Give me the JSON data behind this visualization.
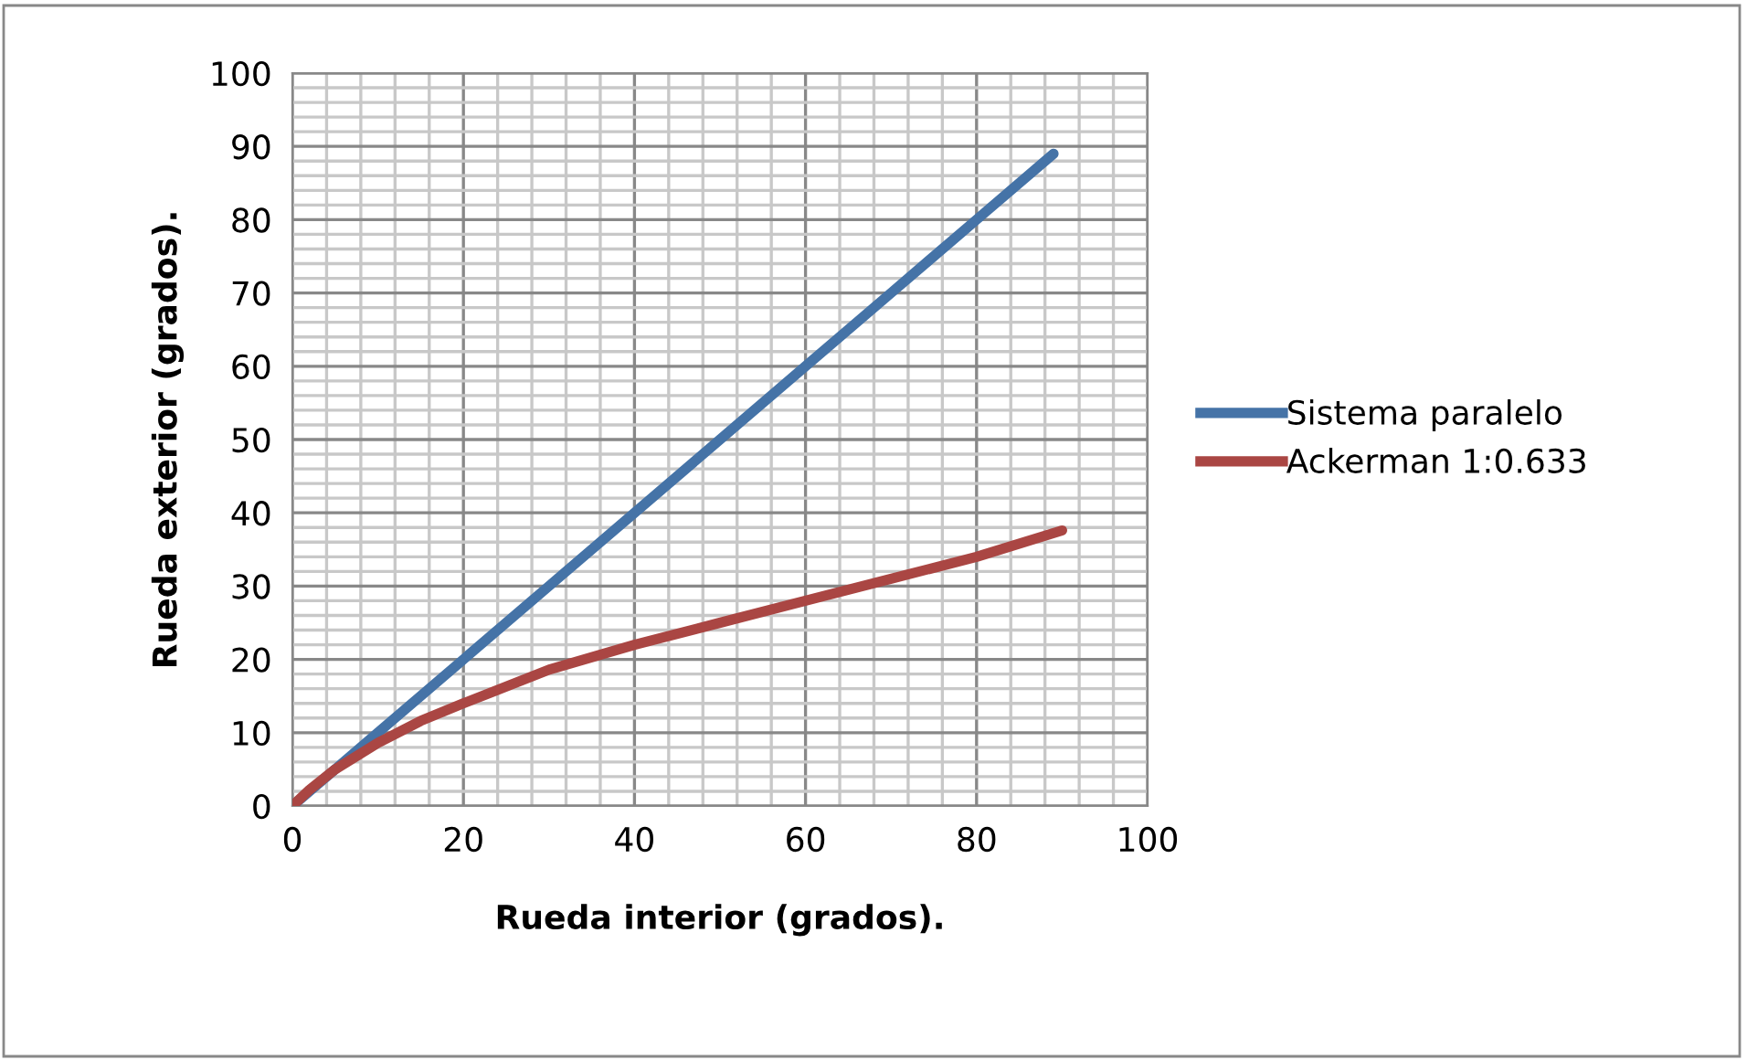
{
  "chart_data": {
    "type": "line",
    "xlabel": "Rueda interior (grados).",
    "ylabel": "Rueda exterior (grados).",
    "xlim": [
      0,
      100
    ],
    "ylim": [
      0,
      100
    ],
    "xticks": [
      0,
      {
        "value": 4,
        "label": null
      },
      {
        "value": 8,
        "label": null
      },
      {
        "value": 12,
        "label": null
      },
      {
        "value": 16,
        "label": null
      },
      20,
      {
        "value": 24,
        "label": null
      },
      {
        "value": 28,
        "label": null
      },
      {
        "value": 32,
        "label": null
      },
      {
        "value": 36,
        "label": null
      },
      40,
      {
        "value": 44,
        "label": null
      },
      {
        "value": 48,
        "label": null
      },
      {
        "value": 52,
        "label": null
      },
      {
        "value": 56,
        "label": null
      },
      60,
      {
        "value": 64,
        "label": null
      },
      {
        "value": 68,
        "label": null
      },
      {
        "value": 72,
        "label": null
      },
      {
        "value": 76,
        "label": null
      },
      80,
      {
        "value": 84,
        "label": null
      },
      {
        "value": 88,
        "label": null
      },
      {
        "value": 92,
        "label": null
      },
      {
        "value": 96,
        "label": null
      },
      100
    ],
    "yticks": [
      0,
      {
        "value": 2,
        "label": null
      },
      {
        "value": 4,
        "label": null
      },
      {
        "value": 6,
        "label": null
      },
      {
        "value": 8,
        "label": null
      },
      10,
      {
        "value": 12,
        "label": null
      },
      {
        "value": 14,
        "label": null
      },
      {
        "value": 16,
        "label": null
      },
      {
        "value": 18,
        "label": null
      },
      20,
      {
        "value": 22,
        "label": null
      },
      {
        "value": 24,
        "label": null
      },
      {
        "value": 26,
        "label": null
      },
      {
        "value": 28,
        "label": null
      },
      30,
      {
        "value": 32,
        "label": null
      },
      {
        "value": 34,
        "label": null
      },
      {
        "value": 36,
        "label": null
      },
      {
        "value": 38,
        "label": null
      },
      40,
      {
        "value": 42,
        "label": null
      },
      {
        "value": 44,
        "label": null
      },
      {
        "value": 46,
        "label": null
      },
      {
        "value": 48,
        "label": null
      },
      50,
      {
        "value": 52,
        "label": null
      },
      {
        "value": 54,
        "label": null
      },
      {
        "value": 56,
        "label": null
      },
      {
        "value": 58,
        "label": null
      },
      60,
      {
        "value": 62,
        "label": null
      },
      {
        "value": 64,
        "label": null
      },
      {
        "value": 66,
        "label": null
      },
      {
        "value": 68,
        "label": null
      },
      70,
      {
        "value": 72,
        "label": null
      },
      {
        "value": 74,
        "label": null
      },
      {
        "value": 76,
        "label": null
      },
      {
        "value": 78,
        "label": null
      },
      80,
      {
        "value": 82,
        "label": null
      },
      {
        "value": 84,
        "label": null
      },
      {
        "value": 86,
        "label": null
      },
      {
        "value": 88,
        "label": null
      },
      90,
      {
        "value": 92,
        "label": null
      },
      {
        "value": 94,
        "label": null
      },
      {
        "value": 96,
        "label": null
      },
      {
        "value": 98,
        "label": null
      },
      100
    ],
    "grid": true,
    "legend": "right",
    "marker": "none",
    "line_style": "solid",
    "series": [
      {
        "name": "Sistema paralelo",
        "color": "#4573a7",
        "x": [
          0,
          10,
          20,
          30,
          40,
          50,
          60,
          70,
          80,
          89
        ],
        "values": [
          0,
          10,
          20,
          30,
          40,
          50,
          60,
          70,
          80,
          89
        ]
      },
      {
        "name": "Ackerman 1:0.633",
        "color": "#aa4643",
        "x": [
          0,
          2,
          5,
          10,
          15,
          20,
          30,
          40,
          50,
          60,
          70,
          80,
          90
        ],
        "values": [
          0,
          2.2,
          5,
          8.6,
          11.6,
          14,
          18.6,
          22,
          25,
          28,
          31,
          34,
          37.6
        ]
      }
    ]
  }
}
